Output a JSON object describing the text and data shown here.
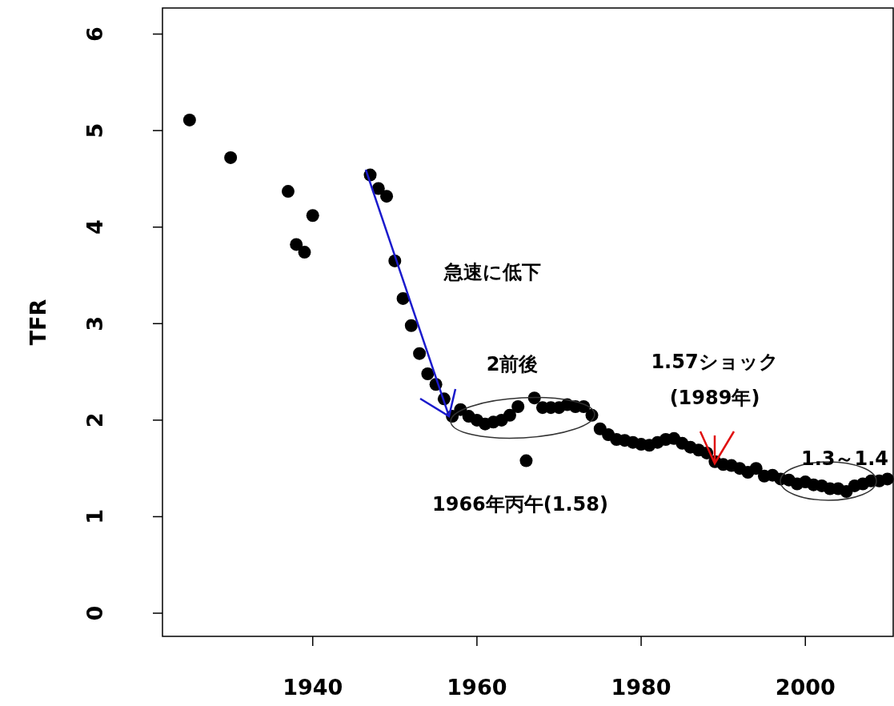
{
  "chart_data": {
    "type": "scatter",
    "ylabel": "TFR",
    "marker": "circle",
    "color": "#000000",
    "grid": false,
    "x": [
      1925,
      1930,
      1937,
      1938,
      1939,
      1940,
      1947,
      1948,
      1949,
      1950,
      1951,
      1952,
      1953,
      1954,
      1955,
      1956,
      1957,
      1958,
      1959,
      1960,
      1961,
      1962,
      1963,
      1964,
      1965,
      1966,
      1967,
      1968,
      1969,
      1970,
      1971,
      1972,
      1973,
      1974,
      1975,
      1976,
      1977,
      1978,
      1979,
      1980,
      1981,
      1982,
      1983,
      1984,
      1985,
      1986,
      1987,
      1988,
      1989,
      1990,
      1991,
      1992,
      1993,
      1994,
      1995,
      1996,
      1997,
      1998,
      1999,
      2000,
      2001,
      2002,
      2003,
      2004,
      2005,
      2006,
      2007,
      2008,
      2009,
      2010
    ],
    "values": [
      5.11,
      4.72,
      4.37,
      3.82,
      3.74,
      4.12,
      4.54,
      4.4,
      4.32,
      3.65,
      3.26,
      2.98,
      2.69,
      2.48,
      2.37,
      2.22,
      2.04,
      2.11,
      2.04,
      2.0,
      1.96,
      1.98,
      2.0,
      2.05,
      2.14,
      1.58,
      2.23,
      2.13,
      2.13,
      2.13,
      2.16,
      2.14,
      2.14,
      2.05,
      1.91,
      1.85,
      1.8,
      1.79,
      1.77,
      1.75,
      1.74,
      1.77,
      1.8,
      1.81,
      1.76,
      1.72,
      1.69,
      1.66,
      1.57,
      1.54,
      1.53,
      1.5,
      1.46,
      1.5,
      1.42,
      1.43,
      1.39,
      1.38,
      1.34,
      1.36,
      1.33,
      1.32,
      1.29,
      1.29,
      1.26,
      1.32,
      1.34,
      1.37,
      1.37,
      1.39
    ],
    "xlim": [
      1921.7,
      2010.7
    ],
    "ylim": [
      -0.24,
      6.27
    ],
    "xticks": [
      1940,
      1960,
      1980,
      2000
    ],
    "yticks": [
      0,
      1,
      2,
      3,
      4,
      5,
      6
    ],
    "annotations": [
      "急速に低下",
      "2前後",
      "1.57ショック",
      "(1989年)",
      "1.3～1.4",
      "1966年丙午(1.58)"
    ]
  }
}
